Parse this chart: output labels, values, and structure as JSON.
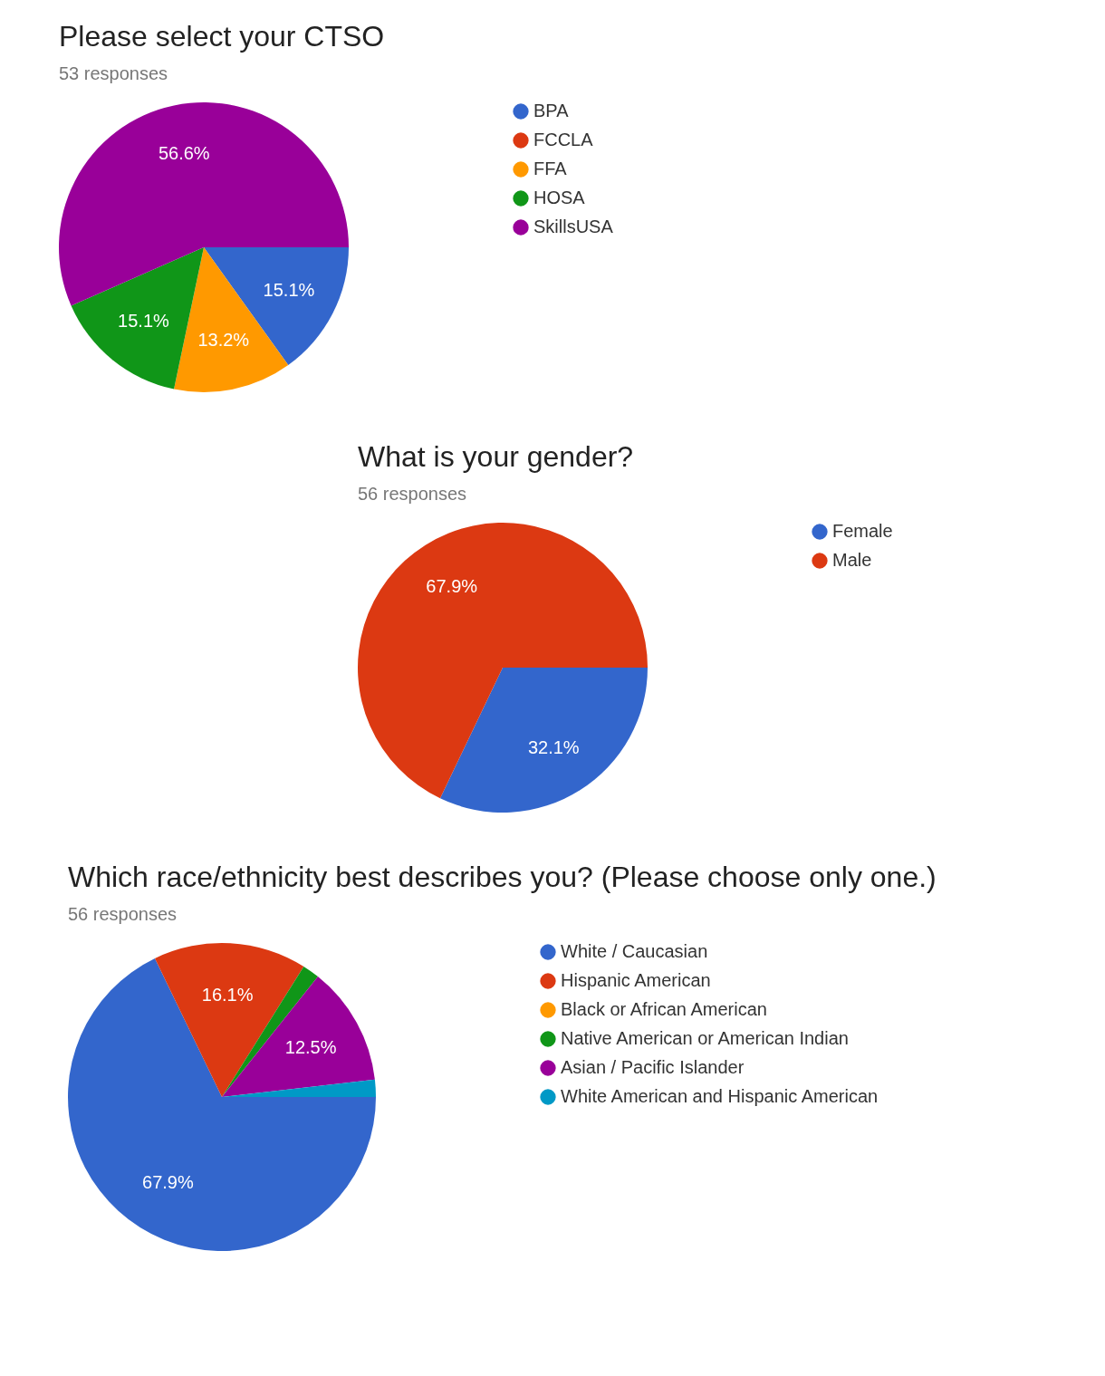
{
  "chart_data": [
    {
      "type": "pie",
      "title": "Please select your CTSO",
      "subtitle": "53 responses",
      "categories": [
        "BPA",
        "FCCLA",
        "FFA",
        "HOSA",
        "SkillsUSA"
      ],
      "values": [
        15.1,
        0,
        13.2,
        15.1,
        56.6
      ],
      "colors": [
        "#3366cc",
        "#dc3912",
        "#ff9900",
        "#109618",
        "#990099"
      ],
      "value_labels": [
        "15.1%",
        null,
        "13.2%",
        "15.1%",
        "56.6%"
      ],
      "legend": "right"
    },
    {
      "type": "pie",
      "title": "What is your gender?",
      "subtitle": "56 responses",
      "categories": [
        "Female",
        "Male"
      ],
      "values": [
        32.1,
        67.9
      ],
      "colors": [
        "#3366cc",
        "#dc3912"
      ],
      "value_labels": [
        "32.1%",
        "67.9%"
      ],
      "legend": "right"
    },
    {
      "type": "pie",
      "title": "Which race/ethnicity best describes you? (Please choose only one.)",
      "subtitle": "56 responses",
      "categories": [
        "White / Caucasian",
        "Hispanic American",
        "Black or African American",
        "Native American or American Indian",
        "Asian / Pacific Islander",
        "White American and Hispanic American"
      ],
      "values": [
        67.9,
        16.1,
        0,
        1.8,
        12.5,
        1.8
      ],
      "colors": [
        "#3366cc",
        "#dc3912",
        "#ff9900",
        "#109618",
        "#990099",
        "#0099c6"
      ],
      "value_labels": [
        "67.9%",
        "16.1%",
        null,
        null,
        "12.5%",
        null
      ],
      "legend": "right"
    }
  ]
}
